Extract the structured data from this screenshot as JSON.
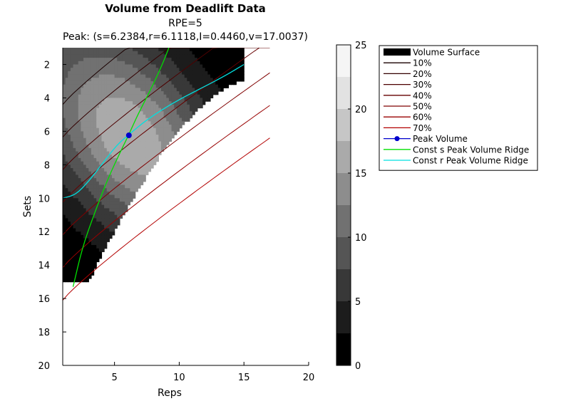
{
  "chart_data": {
    "type": "heatmap",
    "title": "Volume from Deadlift Data",
    "subtitle": "RPE=5",
    "peak_label": "Peak: (s=6.2384,r=6.1118,I=0.4460,v=17.0037)",
    "xlabel": "Reps",
    "ylabel": "Sets",
    "xlim": [
      1,
      20
    ],
    "ylim": [
      20,
      1
    ],
    "x_ticks": [
      "5",
      "10",
      "15",
      "20"
    ],
    "y_ticks": [
      "2",
      "4",
      "6",
      "8",
      "10",
      "12",
      "14",
      "16",
      "18",
      "20"
    ],
    "surface_region": {
      "reps_range": [
        1,
        15
      ],
      "sets_range": [
        1,
        15
      ]
    },
    "peak": {
      "s": 6.2384,
      "r": 6.1118,
      "I": 0.446,
      "v": 17.0037
    },
    "intensity_contours": [
      "10%",
      "20%",
      "30%",
      "40%",
      "50%",
      "60%",
      "70%"
    ],
    "ridges": {
      "const_s": {
        "name": "Const s Peak Volume Ridge",
        "color": "#00e000",
        "points": [
          [
            1.8,
            15.3
          ],
          [
            2.5,
            13.0
          ],
          [
            3.4,
            11.0
          ],
          [
            4.5,
            8.8
          ],
          [
            5.6,
            7.0
          ],
          [
            6.1,
            6.2
          ],
          [
            6.8,
            5.0
          ],
          [
            7.8,
            3.5
          ],
          [
            8.7,
            2.0
          ],
          [
            9.2,
            1.0
          ]
        ]
      },
      "const_r": {
        "name": "Const r Peak Volume Ridge",
        "color": "#00e0e0",
        "points": [
          [
            1.0,
            10.0
          ],
          [
            2.0,
            9.8
          ],
          [
            3.0,
            9.0
          ],
          [
            4.2,
            7.8
          ],
          [
            5.2,
            6.8
          ],
          [
            6.1,
            6.2
          ],
          [
            7.5,
            5.3
          ],
          [
            9.5,
            4.3
          ],
          [
            11.5,
            3.5
          ],
          [
            13.5,
            2.7
          ],
          [
            15.0,
            2.0
          ]
        ]
      }
    },
    "legend": {
      "placement": "top-right",
      "entries": [
        {
          "label": "Volume Surface",
          "style": "box",
          "color": "#000000"
        },
        {
          "label": "10%",
          "style": "line",
          "color": "#1a0000"
        },
        {
          "label": "20%",
          "style": "line",
          "color": "#330000"
        },
        {
          "label": "30%",
          "style": "line",
          "color": "#4d0000"
        },
        {
          "label": "40%",
          "style": "line",
          "color": "#660000"
        },
        {
          "label": "50%",
          "style": "line",
          "color": "#800000"
        },
        {
          "label": "60%",
          "style": "line",
          "color": "#990000"
        },
        {
          "label": "70%",
          "style": "line",
          "color": "#b30000"
        },
        {
          "label": "Peak Volume",
          "style": "marker",
          "color": "#0000cc"
        },
        {
          "label": "Const s Peak Volume Ridge",
          "style": "line",
          "color": "#00e000"
        },
        {
          "label": "Const r Peak Volume Ridge",
          "style": "line",
          "color": "#00e0e0"
        }
      ]
    },
    "colorbar": {
      "range": [
        0,
        25
      ],
      "ticks": [
        "0",
        "5",
        "10",
        "15",
        "20",
        "25"
      ],
      "levels": [
        {
          "from": 0,
          "to": 2.5,
          "color": "#000000"
        },
        {
          "from": 2.5,
          "to": 5,
          "color": "#1c1c1c"
        },
        {
          "from": 5,
          "to": 7.5,
          "color": "#383838"
        },
        {
          "from": 7.5,
          "to": 10,
          "color": "#555555"
        },
        {
          "from": 10,
          "to": 12.5,
          "color": "#717171"
        },
        {
          "from": 12.5,
          "to": 15,
          "color": "#8d8d8d"
        },
        {
          "from": 15,
          "to": 17.5,
          "color": "#aaaaaa"
        },
        {
          "from": 17.5,
          "to": 20,
          "color": "#c6c6c6"
        },
        {
          "from": 20,
          "to": 22.5,
          "color": "#e2e2e2"
        },
        {
          "from": 22.5,
          "to": 25,
          "color": "#f5f5f5"
        }
      ]
    }
  }
}
